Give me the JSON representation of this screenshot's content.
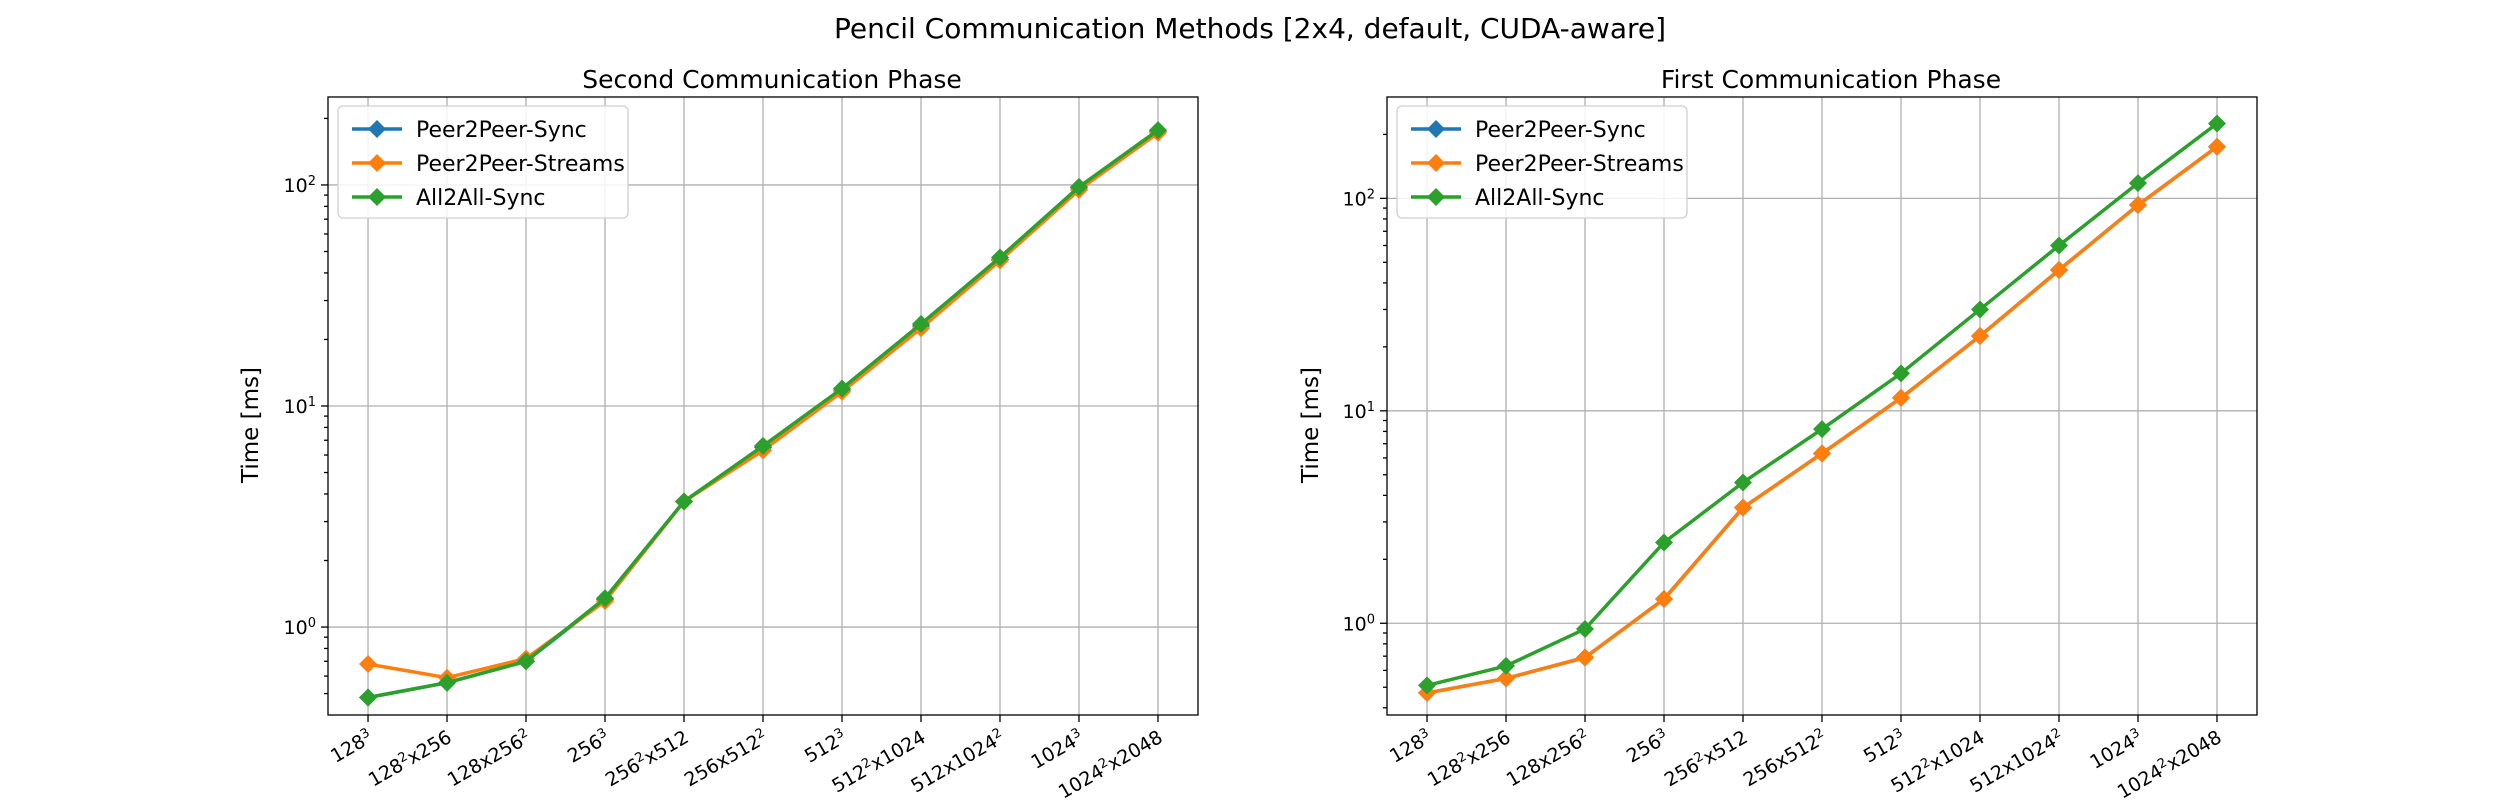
{
  "title": "Pencil Communication Methods [2x4, default, CUDA-aware]",
  "colors": {
    "Peer2Peer-Sync": "#1f77b4",
    "Peer2Peer-Streams": "#ff7f0e",
    "All2All-Sync": "#2ca02c"
  },
  "chart_data": [
    {
      "type": "line",
      "title": "Second Communication Phase",
      "xlabel": "",
      "ylabel": "Time [ms]",
      "yscale": "log",
      "ylim": [
        0.4,
        250
      ],
      "grid": true,
      "legend_position": "top-left",
      "categories": [
        "128^3",
        "128^2x256",
        "128x256^2",
        "256^3",
        "256^2x512",
        "256x512^2",
        "512^3",
        "512^2x1024",
        "512x1024^2",
        "1024^3",
        "1024^2x2048"
      ],
      "series": [
        {
          "name": "Peer2Peer-Sync",
          "values": [
            0.48,
            0.56,
            0.7,
            1.33,
            3.7,
            6.5,
            11.8,
            23.0,
            46.0,
            97.0,
            175.0
          ]
        },
        {
          "name": "Peer2Peer-Streams",
          "values": [
            0.68,
            0.59,
            0.72,
            1.31,
            3.7,
            6.3,
            11.6,
            22.5,
            45.5,
            95.0,
            172.0
          ]
        },
        {
          "name": "All2All-Sync",
          "values": [
            0.48,
            0.56,
            0.7,
            1.35,
            3.7,
            6.6,
            12.0,
            23.5,
            47.0,
            98.0,
            177.0
          ]
        }
      ]
    },
    {
      "type": "line",
      "title": "First Communication Phase",
      "xlabel": "",
      "ylabel": "Time [ms]",
      "yscale": "log",
      "ylim": [
        0.37,
        300
      ],
      "grid": true,
      "legend_position": "top-left",
      "categories": [
        "128^3",
        "128^2x256",
        "128x256^2",
        "256^3",
        "256^2x512",
        "256x512^2",
        "512^3",
        "512^2x1024",
        "512x1024^2",
        "1024^3",
        "1024^2x2048"
      ],
      "series": [
        {
          "name": "Peer2Peer-Sync",
          "values": [
            0.47,
            0.55,
            0.69,
            1.3,
            3.5,
            6.3,
            11.5,
            22.5,
            46.0,
            93.0,
            175.0
          ]
        },
        {
          "name": "Peer2Peer-Streams",
          "values": [
            0.47,
            0.55,
            0.69,
            1.3,
            3.5,
            6.3,
            11.5,
            22.5,
            46.0,
            93.0,
            175.0
          ]
        },
        {
          "name": "All2All-Sync",
          "values": [
            0.51,
            0.63,
            0.94,
            2.4,
            4.6,
            8.2,
            15.0,
            30.0,
            60.0,
            118.0,
            225.0
          ]
        }
      ]
    }
  ]
}
